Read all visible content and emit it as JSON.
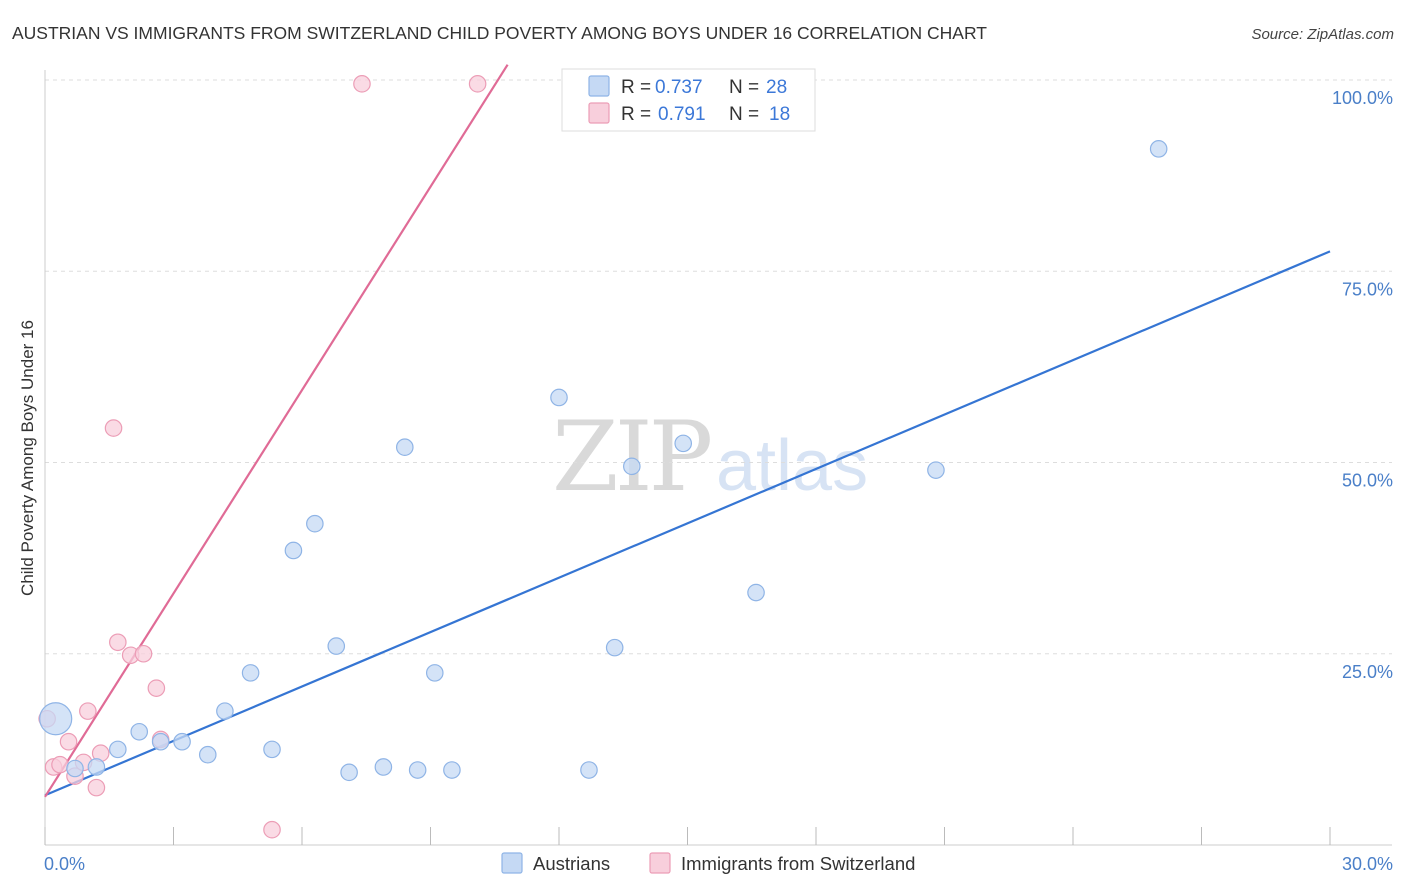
{
  "title": "AUSTRIAN VS IMMIGRANTS FROM SWITZERLAND CHILD POVERTY AMONG BOYS UNDER 16 CORRELATION CHART",
  "source": "Source: ZipAtlas.com",
  "watermark": {
    "zip": "ZIP",
    "atlas": "atlas"
  },
  "colors": {
    "blue_fill": "#c5d9f4",
    "blue_stroke": "#8fb4e6",
    "blue_line": "#3575d3",
    "pink_fill": "#f8cfdc",
    "pink_stroke": "#ec9db6",
    "pink_line": "#e06b96",
    "grid": "#dddddd",
    "tick_text": "#4a7fc8"
  },
  "legend": {
    "series": [
      {
        "r_label": "R =",
        "r_value": "0.737",
        "n_label": "N =",
        "n_value": "28"
      },
      {
        "r_label": "R =",
        "r_value": "0.791",
        "n_label": "N =",
        "n_value": "18"
      }
    ]
  },
  "bottom_legend": [
    "Austrians",
    "Immigrants from Switzerland"
  ],
  "chart_data": {
    "type": "scatter",
    "title": "AUSTRIAN VS IMMIGRANTS FROM SWITZERLAND CHILD POVERTY AMONG BOYS UNDER 16 CORRELATION CHART",
    "xlabel": "",
    "ylabel": "Child Poverty Among Boys Under 16",
    "xlim": [
      0,
      30
    ],
    "ylim": [
      0,
      100
    ],
    "x_tick_labels": [
      {
        "value": 0,
        "label": "0.0%"
      },
      {
        "value": 30,
        "label": "30.0%"
      }
    ],
    "y_tick_labels": [
      {
        "value": 25,
        "label": "25.0%"
      },
      {
        "value": 50,
        "label": "50.0%"
      },
      {
        "value": 75,
        "label": "75.0%"
      },
      {
        "value": 100,
        "label": "100.0%"
      }
    ],
    "x_minor_ticks": [
      0,
      3,
      6,
      9,
      12,
      15,
      18,
      21,
      24,
      27,
      30
    ],
    "y_gridlines": [
      25,
      50,
      75,
      100
    ],
    "series": [
      {
        "name": "Austrians",
        "color": "blue",
        "R": 0.737,
        "N": 28,
        "trend": {
          "x": [
            0,
            30
          ],
          "y": [
            6.5,
            77.6
          ]
        },
        "points": [
          {
            "x": 0.25,
            "y": 16.5,
            "size": "large"
          },
          {
            "x": 0.7,
            "y": 10.0
          },
          {
            "x": 1.2,
            "y": 10.2
          },
          {
            "x": 1.7,
            "y": 12.5
          },
          {
            "x": 2.2,
            "y": 14.8
          },
          {
            "x": 2.7,
            "y": 13.5
          },
          {
            "x": 3.2,
            "y": 13.5
          },
          {
            "x": 3.8,
            "y": 11.8
          },
          {
            "x": 4.2,
            "y": 17.5
          },
          {
            "x": 4.8,
            "y": 22.5
          },
          {
            "x": 5.3,
            "y": 12.5
          },
          {
            "x": 5.8,
            "y": 38.5
          },
          {
            "x": 6.3,
            "y": 42.0
          },
          {
            "x": 6.8,
            "y": 26.0
          },
          {
            "x": 7.1,
            "y": 9.5
          },
          {
            "x": 7.9,
            "y": 10.2
          },
          {
            "x": 8.4,
            "y": 52.0
          },
          {
            "x": 8.7,
            "y": 9.8
          },
          {
            "x": 9.1,
            "y": 22.5
          },
          {
            "x": 9.5,
            "y": 9.8
          },
          {
            "x": 12.0,
            "y": 58.5
          },
          {
            "x": 12.7,
            "y": 9.8
          },
          {
            "x": 13.3,
            "y": 25.8
          },
          {
            "x": 13.7,
            "y": 49.5
          },
          {
            "x": 14.9,
            "y": 52.5
          },
          {
            "x": 16.6,
            "y": 33.0
          },
          {
            "x": 20.8,
            "y": 49.0
          },
          {
            "x": 26.0,
            "y": 91.0
          }
        ]
      },
      {
        "name": "Immigrants from Switzerland",
        "color": "pink",
        "R": 0.791,
        "N": 18,
        "trend": {
          "x": [
            0,
            10.8
          ],
          "y": [
            6.3,
            102.0
          ]
        },
        "points": [
          {
            "x": 0.05,
            "y": 16.5
          },
          {
            "x": 0.2,
            "y": 10.2
          },
          {
            "x": 0.35,
            "y": 10.5
          },
          {
            "x": 0.55,
            "y": 13.5
          },
          {
            "x": 0.7,
            "y": 9.0
          },
          {
            "x": 0.9,
            "y": 10.8
          },
          {
            "x": 1.0,
            "y": 17.5
          },
          {
            "x": 1.2,
            "y": 7.5
          },
          {
            "x": 1.3,
            "y": 12.0
          },
          {
            "x": 1.6,
            "y": 54.5
          },
          {
            "x": 1.7,
            "y": 26.5
          },
          {
            "x": 2.0,
            "y": 24.8
          },
          {
            "x": 2.3,
            "y": 25.0
          },
          {
            "x": 2.6,
            "y": 20.5
          },
          {
            "x": 2.7,
            "y": 13.8
          },
          {
            "x": 5.3,
            "y": 2.0
          },
          {
            "x": 7.4,
            "y": 99.5
          },
          {
            "x": 10.1,
            "y": 99.5
          }
        ]
      }
    ]
  }
}
